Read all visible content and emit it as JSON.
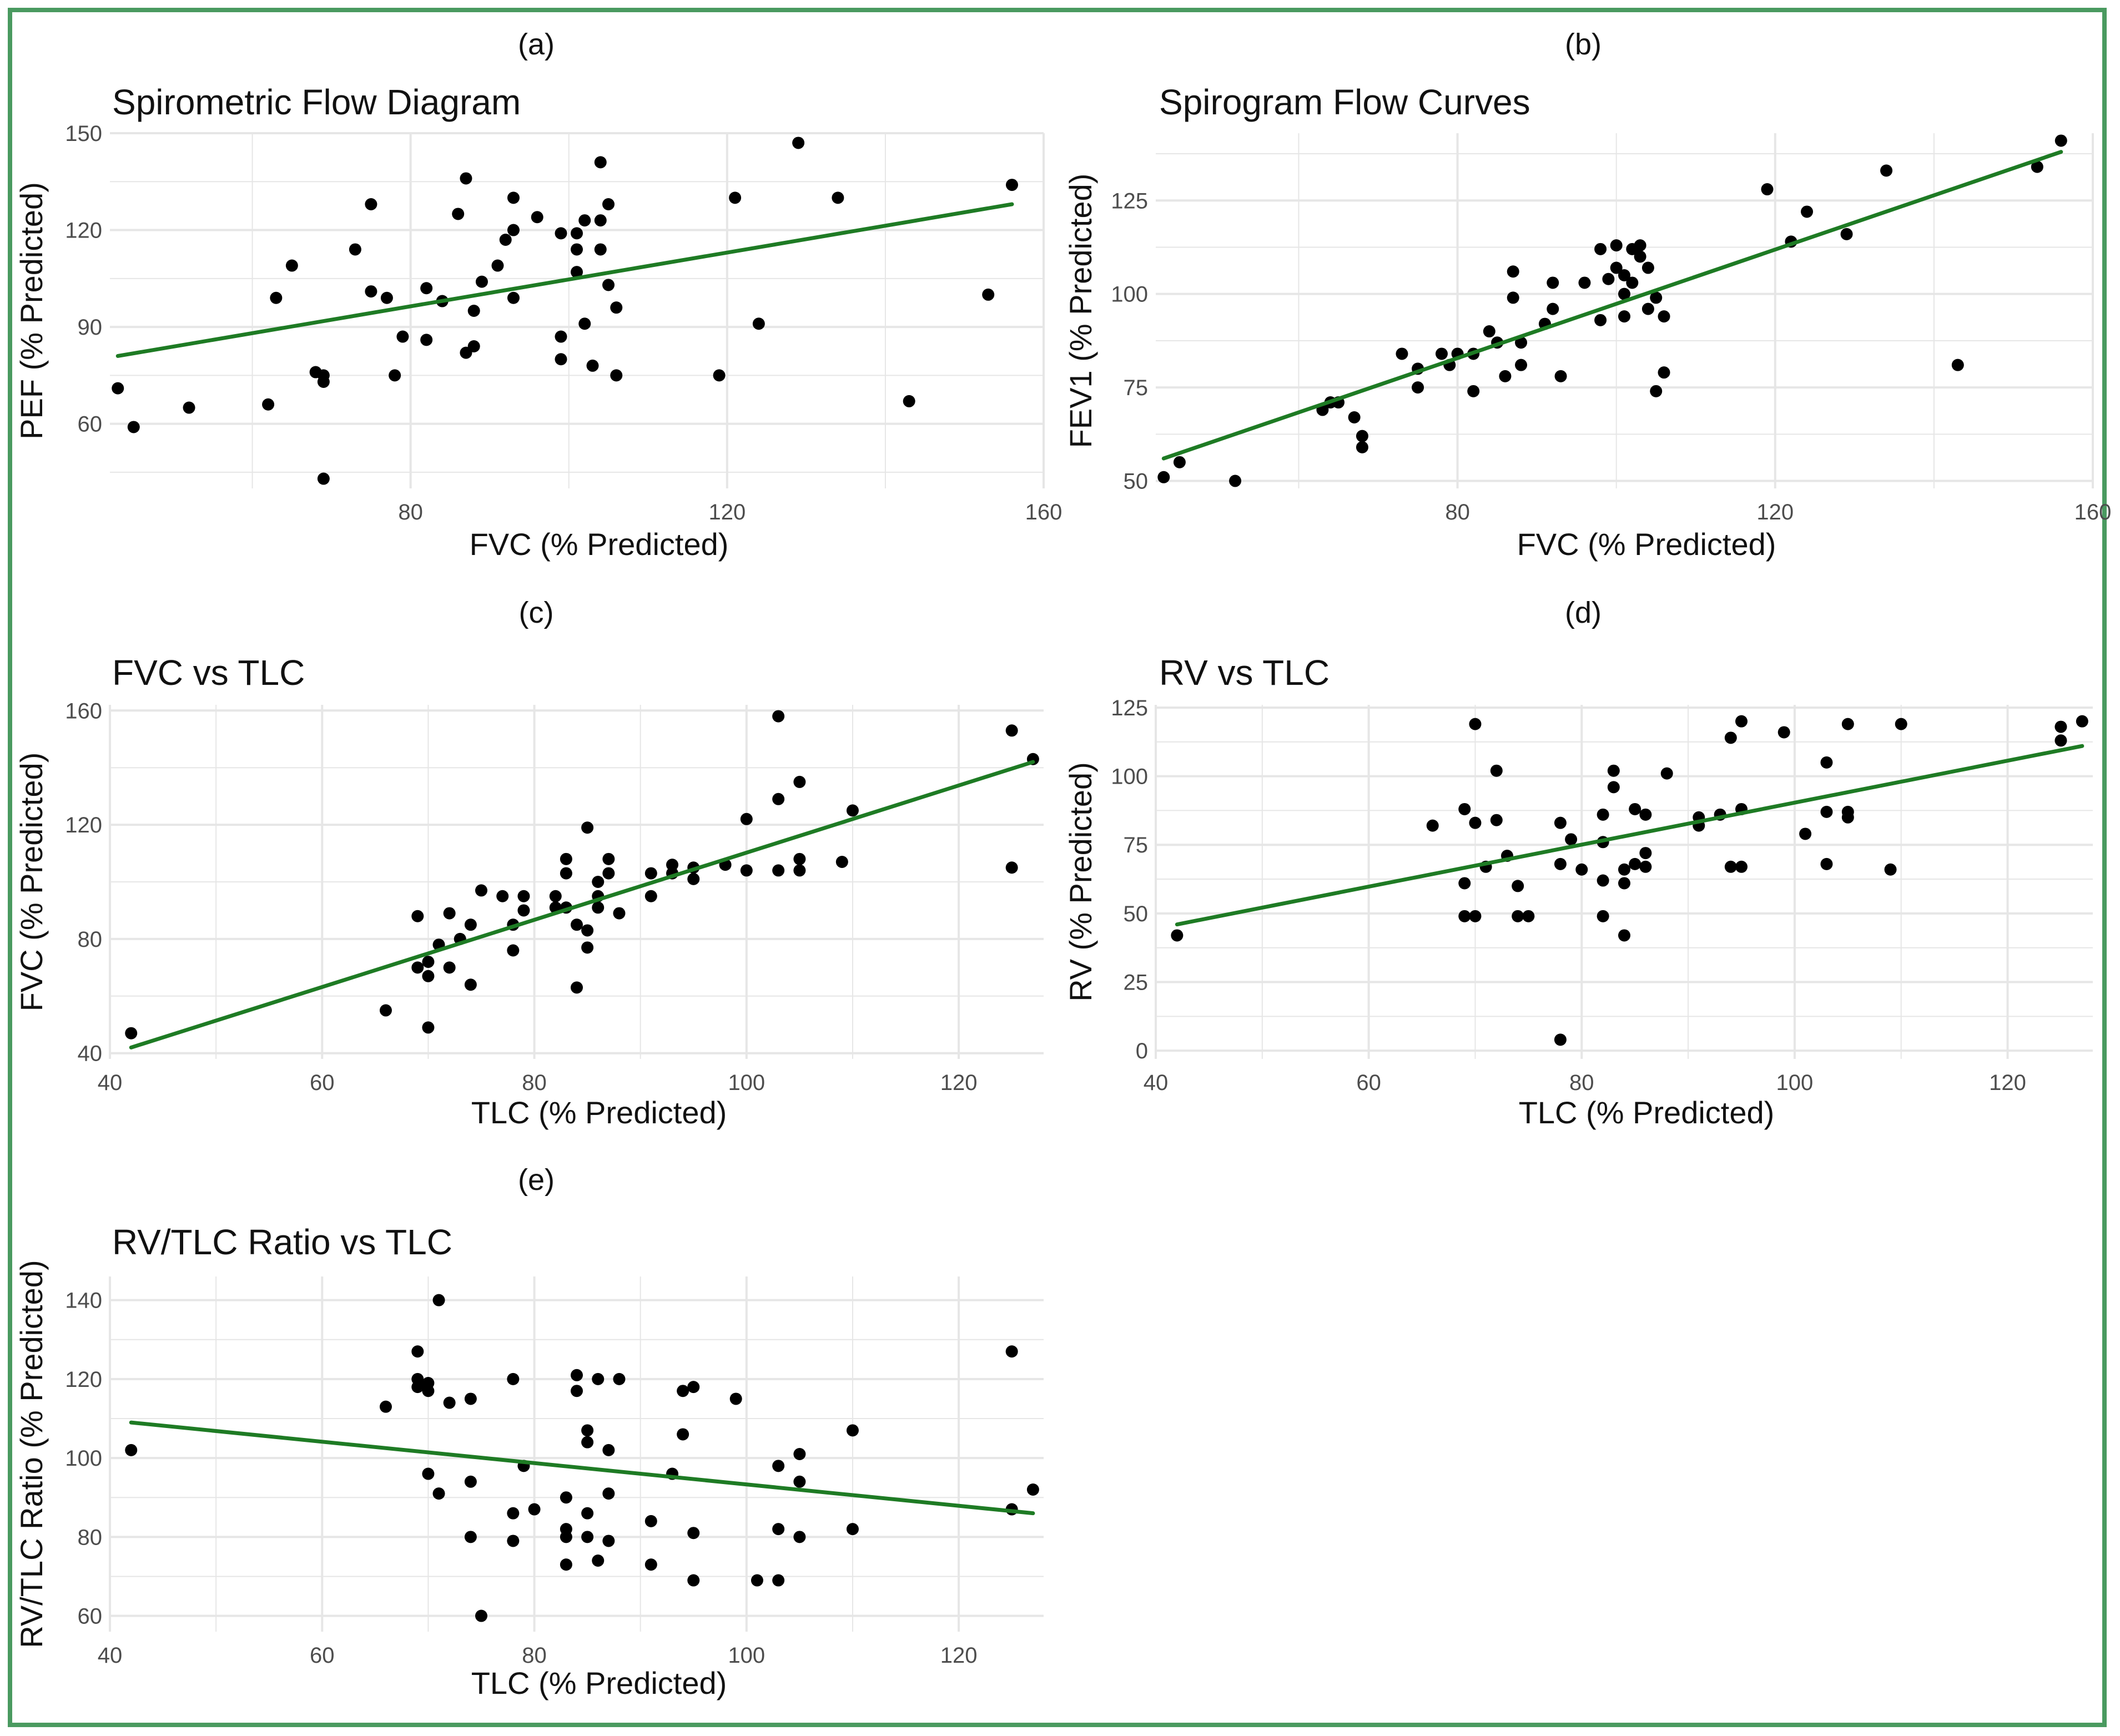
{
  "colors": {
    "frame": "#4a9a60",
    "trend_line": "#1e7b24",
    "point": "#000000",
    "grid": "#e6e6e6"
  },
  "chart_data": [
    {
      "panel": "(a)",
      "type": "scatter",
      "title": "Spirometric Flow Diagram",
      "xlabel": "FVC (% Predicted)",
      "ylabel": "PEF (% Predicted)",
      "xlim": [
        42,
        160
      ],
      "ylim": [
        40,
        150
      ],
      "xticks": [
        80,
        120,
        160
      ],
      "yticks": [
        60,
        90,
        120,
        150
      ],
      "trend": [
        [
          43,
          81
        ],
        [
          156,
          128
        ]
      ],
      "points": [
        [
          43,
          71
        ],
        [
          45,
          59
        ],
        [
          52,
          65
        ],
        [
          62,
          66
        ],
        [
          63,
          99
        ],
        [
          65,
          109
        ],
        [
          68,
          76
        ],
        [
          69,
          73
        ],
        [
          69,
          75
        ],
        [
          73,
          114
        ],
        [
          75,
          128
        ],
        [
          75,
          101
        ],
        [
          77,
          99
        ],
        [
          78,
          75
        ],
        [
          79,
          87
        ],
        [
          82,
          86
        ],
        [
          82,
          102
        ],
        [
          84,
          98
        ],
        [
          86,
          125
        ],
        [
          87,
          82
        ],
        [
          87,
          136
        ],
        [
          88,
          84
        ],
        [
          88,
          95
        ],
        [
          89,
          104
        ],
        [
          91,
          109
        ],
        [
          92,
          117
        ],
        [
          93,
          120
        ],
        [
          93,
          130
        ],
        [
          93,
          99
        ],
        [
          96,
          124
        ],
        [
          99,
          119
        ],
        [
          99,
          80
        ],
        [
          99,
          87
        ],
        [
          101,
          119
        ],
        [
          101,
          114
        ],
        [
          101,
          107
        ],
        [
          102,
          123
        ],
        [
          102,
          91
        ],
        [
          103,
          78
        ],
        [
          104,
          141
        ],
        [
          104,
          123
        ],
        [
          104,
          114
        ],
        [
          105,
          128
        ],
        [
          105,
          103
        ],
        [
          106,
          96
        ],
        [
          106,
          75
        ],
        [
          119,
          75
        ],
        [
          121,
          130
        ],
        [
          124,
          91
        ],
        [
          129,
          147
        ],
        [
          134,
          130
        ],
        [
          143,
          67
        ],
        [
          153,
          100
        ],
        [
          156,
          134
        ],
        [
          69,
          43
        ]
      ]
    },
    {
      "panel": "(b)",
      "type": "scatter",
      "title": "Spirogram Flow Curves",
      "xlabel": "FVC (% Predicted)",
      "ylabel": "FEV1 (% Predicted)",
      "xlim": [
        42,
        160
      ],
      "ylim": [
        48,
        143
      ],
      "xticks": [
        80,
        120,
        160
      ],
      "yticks": [
        50,
        75,
        100,
        125
      ],
      "trend": [
        [
          43,
          56
        ],
        [
          156,
          138
        ]
      ],
      "points": [
        [
          43,
          51
        ],
        [
          45,
          55
        ],
        [
          52,
          50
        ],
        [
          63,
          69
        ],
        [
          64,
          71
        ],
        [
          65,
          71
        ],
        [
          67,
          67
        ],
        [
          68,
          62
        ],
        [
          68,
          59
        ],
        [
          73,
          84
        ],
        [
          75,
          80
        ],
        [
          75,
          75
        ],
        [
          78,
          84
        ],
        [
          79,
          81
        ],
        [
          80,
          84
        ],
        [
          82,
          74
        ],
        [
          82,
          84
        ],
        [
          84,
          90
        ],
        [
          85,
          87
        ],
        [
          86,
          78
        ],
        [
          87,
          106
        ],
        [
          87,
          99
        ],
        [
          88,
          87
        ],
        [
          88,
          81
        ],
        [
          91,
          92
        ],
        [
          92,
          96
        ],
        [
          92,
          103
        ],
        [
          93,
          78
        ],
        [
          96,
          103
        ],
        [
          98,
          93
        ],
        [
          98,
          112
        ],
        [
          99,
          104
        ],
        [
          100,
          113
        ],
        [
          100,
          107
        ],
        [
          101,
          105
        ],
        [
          101,
          100
        ],
        [
          101,
          94
        ],
        [
          102,
          103
        ],
        [
          102,
          112
        ],
        [
          103,
          110
        ],
        [
          103,
          113
        ],
        [
          104,
          96
        ],
        [
          104,
          107
        ],
        [
          105,
          99
        ],
        [
          105,
          74
        ],
        [
          106,
          94
        ],
        [
          106,
          79
        ],
        [
          119,
          128
        ],
        [
          122,
          114
        ],
        [
          124,
          122
        ],
        [
          129,
          116
        ],
        [
          134,
          133
        ],
        [
          143,
          81
        ],
        [
          153,
          134
        ],
        [
          156,
          141
        ]
      ]
    },
    {
      "panel": "(c)",
      "type": "scatter",
      "title": "FVC vs TLC",
      "xlabel": "TLC (% Predicted)",
      "ylabel": "FVC (% Predicted)",
      "xlim": [
        40,
        128
      ],
      "ylim": [
        38,
        162
      ],
      "xticks": [
        40,
        60,
        80,
        100,
        120
      ],
      "yticks": [
        40,
        80,
        120,
        160
      ],
      "trend": [
        [
          42,
          42
        ],
        [
          127,
          142
        ]
      ],
      "points": [
        [
          42,
          47
        ],
        [
          66,
          55
        ],
        [
          69,
          88
        ],
        [
          69,
          70
        ],
        [
          70,
          72
        ],
        [
          70,
          49
        ],
        [
          70,
          67
        ],
        [
          71,
          78
        ],
        [
          72,
          70
        ],
        [
          72,
          89
        ],
        [
          73,
          80
        ],
        [
          74,
          64
        ],
        [
          74,
          85
        ],
        [
          75,
          97
        ],
        [
          77,
          95
        ],
        [
          78,
          85
        ],
        [
          78,
          76
        ],
        [
          79,
          90
        ],
        [
          79,
          95
        ],
        [
          82,
          91
        ],
        [
          82,
          95
        ],
        [
          83,
          91
        ],
        [
          83,
          103
        ],
        [
          83,
          108
        ],
        [
          84,
          63
        ],
        [
          84,
          85
        ],
        [
          85,
          119
        ],
        [
          85,
          77
        ],
        [
          85,
          83
        ],
        [
          86,
          91
        ],
        [
          86,
          100
        ],
        [
          86,
          95
        ],
        [
          87,
          103
        ],
        [
          87,
          108
        ],
        [
          88,
          89
        ],
        [
          91,
          95
        ],
        [
          91,
          103
        ],
        [
          93,
          103
        ],
        [
          93,
          106
        ],
        [
          95,
          101
        ],
        [
          95,
          105
        ],
        [
          98,
          106
        ],
        [
          100,
          122
        ],
        [
          103,
          158
        ],
        [
          103,
          104
        ],
        [
          103,
          129
        ],
        [
          105,
          104
        ],
        [
          105,
          108
        ],
        [
          105,
          135
        ],
        [
          109,
          107
        ],
        [
          110,
          125
        ],
        [
          125,
          153
        ],
        [
          125,
          105
        ],
        [
          127,
          143
        ],
        [
          100,
          104
        ]
      ]
    },
    {
      "panel": "(d)",
      "type": "scatter",
      "title": "RV vs TLC",
      "xlabel": "TLC (% Predicted)",
      "ylabel": "RV (% Predicted)",
      "xlim": [
        40,
        128
      ],
      "ylim": [
        -3,
        126
      ],
      "xticks": [
        40,
        60,
        80,
        100,
        120
      ],
      "yticks": [
        0,
        25,
        50,
        75,
        100,
        125
      ],
      "trend": [
        [
          42,
          46
        ],
        [
          127,
          111
        ]
      ],
      "points": [
        [
          42,
          42
        ],
        [
          66,
          82
        ],
        [
          69,
          61
        ],
        [
          69,
          49
        ],
        [
          69,
          88
        ],
        [
          70,
          49
        ],
        [
          70,
          119
        ],
        [
          70,
          83
        ],
        [
          71,
          67
        ],
        [
          72,
          84
        ],
        [
          72,
          102
        ],
        [
          73,
          71
        ],
        [
          74,
          60
        ],
        [
          74,
          49
        ],
        [
          75,
          49
        ],
        [
          78,
          83
        ],
        [
          78,
          68
        ],
        [
          78,
          4
        ],
        [
          79,
          77
        ],
        [
          80,
          66
        ],
        [
          82,
          76
        ],
        [
          82,
          86
        ],
        [
          82,
          49
        ],
        [
          82,
          62
        ],
        [
          83,
          102
        ],
        [
          83,
          96
        ],
        [
          84,
          61
        ],
        [
          84,
          66
        ],
        [
          84,
          42
        ],
        [
          85,
          88
        ],
        [
          85,
          68
        ],
        [
          86,
          72
        ],
        [
          86,
          67
        ],
        [
          86,
          86
        ],
        [
          88,
          101
        ],
        [
          91,
          85
        ],
        [
          91,
          82
        ],
        [
          93,
          86
        ],
        [
          94,
          67
        ],
        [
          94,
          114
        ],
        [
          95,
          120
        ],
        [
          95,
          88
        ],
        [
          95,
          67
        ],
        [
          99,
          116
        ],
        [
          101,
          79
        ],
        [
          103,
          105
        ],
        [
          103,
          87
        ],
        [
          103,
          68
        ],
        [
          105,
          119
        ],
        [
          105,
          85
        ],
        [
          105,
          87
        ],
        [
          109,
          66
        ],
        [
          110,
          119
        ],
        [
          125,
          118
        ],
        [
          125,
          113
        ],
        [
          127,
          120
        ]
      ]
    },
    {
      "panel": "(e)",
      "type": "scatter",
      "title": "RV/TLC Ratio vs TLC",
      "xlabel": "TLC (% Predicted)",
      "ylabel": "RV/TLC Ratio (% Predicted)",
      "xlim": [
        40,
        128
      ],
      "ylim": [
        56,
        146
      ],
      "xticks": [
        40,
        60,
        80,
        100,
        120
      ],
      "yticks": [
        60,
        80,
        100,
        120,
        140
      ],
      "trend": [
        [
          42,
          109
        ],
        [
          127,
          86
        ]
      ],
      "points": [
        [
          42,
          102
        ],
        [
          66,
          113
        ],
        [
          69,
          127
        ],
        [
          69,
          118
        ],
        [
          69,
          120
        ],
        [
          70,
          117
        ],
        [
          70,
          119
        ],
        [
          70,
          96
        ],
        [
          71,
          91
        ],
        [
          71,
          140
        ],
        [
          72,
          114
        ],
        [
          74,
          115
        ],
        [
          74,
          80
        ],
        [
          74,
          94
        ],
        [
          75,
          60
        ],
        [
          78,
          120
        ],
        [
          78,
          86
        ],
        [
          78,
          79
        ],
        [
          79,
          98
        ],
        [
          80,
          87
        ],
        [
          83,
          80
        ],
        [
          83,
          90
        ],
        [
          83,
          82
        ],
        [
          83,
          73
        ],
        [
          84,
          121
        ],
        [
          84,
          117
        ],
        [
          85,
          107
        ],
        [
          85,
          104
        ],
        [
          85,
          86
        ],
        [
          85,
          80
        ],
        [
          86,
          74
        ],
        [
          86,
          120
        ],
        [
          87,
          91
        ],
        [
          87,
          102
        ],
        [
          87,
          79
        ],
        [
          88,
          120
        ],
        [
          91,
          73
        ],
        [
          91,
          84
        ],
        [
          93,
          96
        ],
        [
          94,
          106
        ],
        [
          94,
          117
        ],
        [
          95,
          118
        ],
        [
          95,
          81
        ],
        [
          95,
          69
        ],
        [
          99,
          115
        ],
        [
          101,
          69
        ],
        [
          103,
          69
        ],
        [
          103,
          98
        ],
        [
          103,
          82
        ],
        [
          105,
          101
        ],
        [
          105,
          80
        ],
        [
          105,
          94
        ],
        [
          110,
          107
        ],
        [
          110,
          82
        ],
        [
          125,
          127
        ],
        [
          125,
          87
        ],
        [
          127,
          92
        ]
      ]
    }
  ]
}
